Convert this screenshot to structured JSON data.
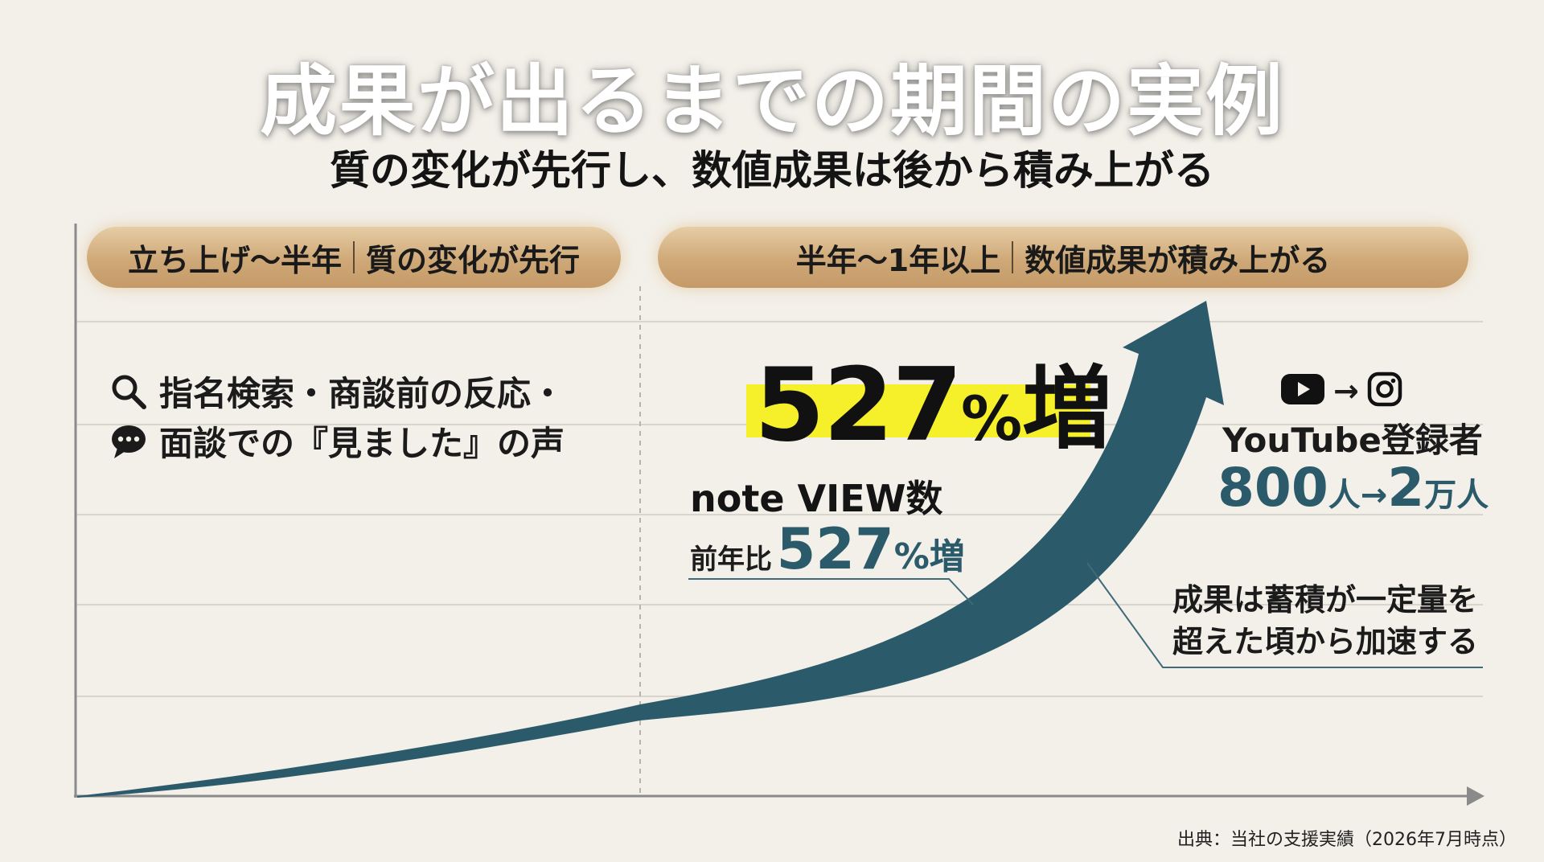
{
  "title": "成果が出るまでの期間の実例",
  "subtitle": "質の変化が先行し、数値成果は後から積み上がる",
  "phases": {
    "early": {
      "period": "立ち上げ〜半年",
      "desc": "質の変化が先行"
    },
    "later": {
      "period": "半年〜1年以上",
      "desc": "数値成果が積み上がる"
    }
  },
  "qualitative": {
    "line1": "指名検索・商談前の反応・",
    "line2": "面談での『見ました』の声",
    "icons": [
      "search-icon",
      "speech-bubble-icon"
    ]
  },
  "headline": {
    "number": "527",
    "percent": "%",
    "suffix": "増",
    "highlight_color": "#f6f02a"
  },
  "note_view": {
    "label": "note VIEW数",
    "prefix": "前年比",
    "value": "527",
    "percent": "%",
    "suffix": "増"
  },
  "youtube": {
    "label": "YouTube登録者",
    "from_num": "800",
    "from_unit": "人",
    "arrow": "→",
    "to_num": "2",
    "to_unit": "万人",
    "icons": [
      "youtube-icon",
      "instagram-icon"
    ]
  },
  "acceleration": {
    "line1": "成果は蓄積が一定量を",
    "line2": "超えた頃から加速する"
  },
  "source": "出典：当社の支援実績（2026年7月時点）",
  "colors": {
    "accent": "#2b5a6a",
    "arrow": "#2b5a6a",
    "pill": "#cfa877",
    "background": "#f3f0ea"
  }
}
